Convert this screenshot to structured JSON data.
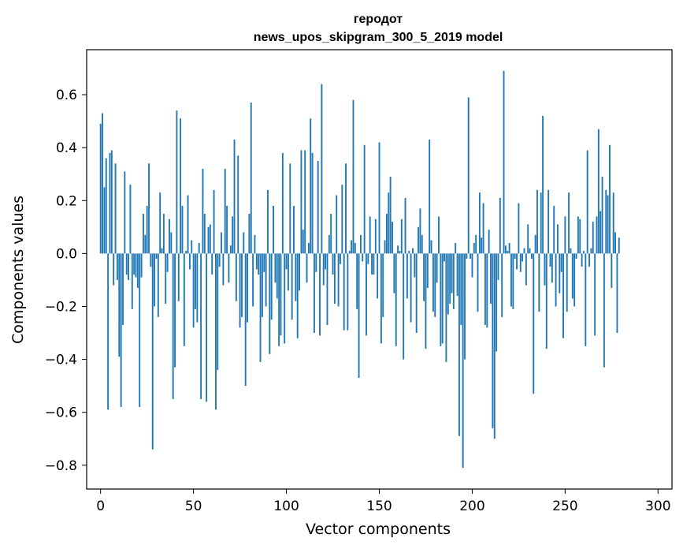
{
  "chart_data": {
    "type": "bar",
    "title_line1": "геродот",
    "title_line2": "news_upos_skipgram_300_5_2019 model",
    "xlabel": "Vector components",
    "ylabel": "Components values",
    "xlim": [
      -7.5,
      307.5
    ],
    "ylim": [
      -0.89,
      0.77
    ],
    "x_ticks": [
      0,
      50,
      100,
      150,
      200,
      250,
      300
    ],
    "y_ticks": [
      -0.8,
      -0.6,
      -0.4,
      -0.2,
      0.0,
      0.2,
      0.4,
      0.6
    ],
    "x_tick_labels": [
      "0",
      "50",
      "100",
      "150",
      "200",
      "250",
      "300"
    ],
    "y_tick_labels": [
      "−0.8",
      "−0.6",
      "−0.4",
      "−0.2",
      "0.0",
      "0.2",
      "0.4",
      "0.6"
    ],
    "bar_color": "#1f77b4",
    "values": [
      0.49,
      0.53,
      0.25,
      0.36,
      -0.59,
      0.38,
      0.39,
      -0.12,
      0.34,
      -0.1,
      -0.39,
      -0.58,
      -0.27,
      0.31,
      -0.08,
      -0.1,
      0.26,
      -0.21,
      -0.08,
      -0.09,
      -0.13,
      -0.58,
      -0.09,
      0.15,
      0.07,
      0.18,
      0.34,
      -0.05,
      -0.74,
      -0.2,
      -0.02,
      -0.24,
      0.23,
      0.02,
      0.15,
      -0.19,
      -0.07,
      0.13,
      0.08,
      -0.55,
      -0.43,
      0.54,
      -0.18,
      0.51,
      0.18,
      -0.35,
      0.01,
      0.22,
      -0.06,
      0.05,
      -0.28,
      -0.21,
      -0.26,
      0.04,
      -0.55,
      0.32,
      0.15,
      -0.56,
      0.1,
      0.11,
      -0.08,
      0.24,
      -0.59,
      -0.44,
      -0.05,
      0.08,
      -0.12,
      0.32,
      0.18,
      -0.11,
      0.03,
      0.14,
      0.43,
      -0.18,
      0.37,
      -0.28,
      -0.24,
      0.08,
      -0.5,
      -0.26,
      0.15,
      0.57,
      -0.2,
      0.07,
      -0.06,
      -0.08,
      -0.41,
      -0.24,
      -0.07,
      -0.2,
      0.24,
      -0.38,
      -0.25,
      0.18,
      -0.11,
      -0.17,
      -0.35,
      -0.31,
      0.38,
      -0.34,
      -0.06,
      -0.14,
      0.34,
      -0.25,
      0.18,
      -0.18,
      -0.32,
      -0.14,
      0.39,
      0.09,
      0.39,
      -0.11,
      0.04,
      0.51,
      0.38,
      -0.3,
      -0.07,
      0.35,
      -0.31,
      0.64,
      -0.12,
      -0.06,
      -0.27,
      0.07,
      0.15,
      -0.08,
      -0.19,
      0.22,
      -0.2,
      -0.04,
      0.26,
      -0.29,
      0.34,
      -0.29,
      0.01,
      0.05,
      0.58,
      0.04,
      -0.21,
      -0.47,
      0.07,
      -0.03,
      0.41,
      -0.31,
      -0.04,
      0.14,
      -0.08,
      -0.08,
      0.13,
      -0.17,
      0.42,
      -0.34,
      -0.24,
      0.05,
      0.15,
      0.23,
      0.29,
      0.12,
      -0.15,
      -0.35,
      0.03,
      0.01,
      0.13,
      -0.4,
      0.21,
      -0.17,
      0.01,
      -0.26,
      0.02,
      -0.09,
      -0.3,
      0.1,
      0.17,
      0.07,
      -0.18,
      -0.36,
      -0.13,
      0.43,
      0.05,
      -0.22,
      -0.24,
      -0.11,
      0.14,
      -0.35,
      -0.34,
      -0.03,
      -0.41,
      -0.23,
      -0.19,
      -0.15,
      -0.21,
      0.04,
      -0.16,
      -0.69,
      -0.27,
      -0.81,
      -0.4,
      -0.02,
      0.59,
      -0.02,
      -0.09,
      0.04,
      0.07,
      -0.22,
      0.23,
      0.06,
      0.19,
      -0.27,
      -0.28,
      0.09,
      -0.19,
      -0.66,
      -0.7,
      -0.37,
      -0.1,
      0.21,
      -0.24,
      0.69,
      0.03,
      0.01,
      0.04,
      -0.2,
      -0.21,
      -0.02,
      -0.06,
      0.19,
      -0.07,
      -0.03,
      0.02,
      -0.12,
      0.11,
      0.02,
      -0.02,
      -0.53,
      0.07,
      0.24,
      -0.22,
      0.23,
      0.52,
      -0.12,
      -0.36,
      0.24,
      -0.05,
      -0.11,
      0.18,
      -0.2,
      0.11,
      -0.15,
      -0.07,
      -0.32,
      0.14,
      -0.22,
      0.23,
      0.02,
      -0.17,
      -0.2,
      -0.02,
      0.14,
      0.13,
      -0.05,
      0.01,
      -0.35,
      0.39,
      -0.05,
      0.02,
      0.12,
      -0.31,
      0.14,
      0.47,
      0.16,
      0.29,
      -0.43,
      0.24,
      0.22,
      0.41,
      -0.13,
      0.23,
      0.08,
      -0.3,
      0.06
    ]
  }
}
